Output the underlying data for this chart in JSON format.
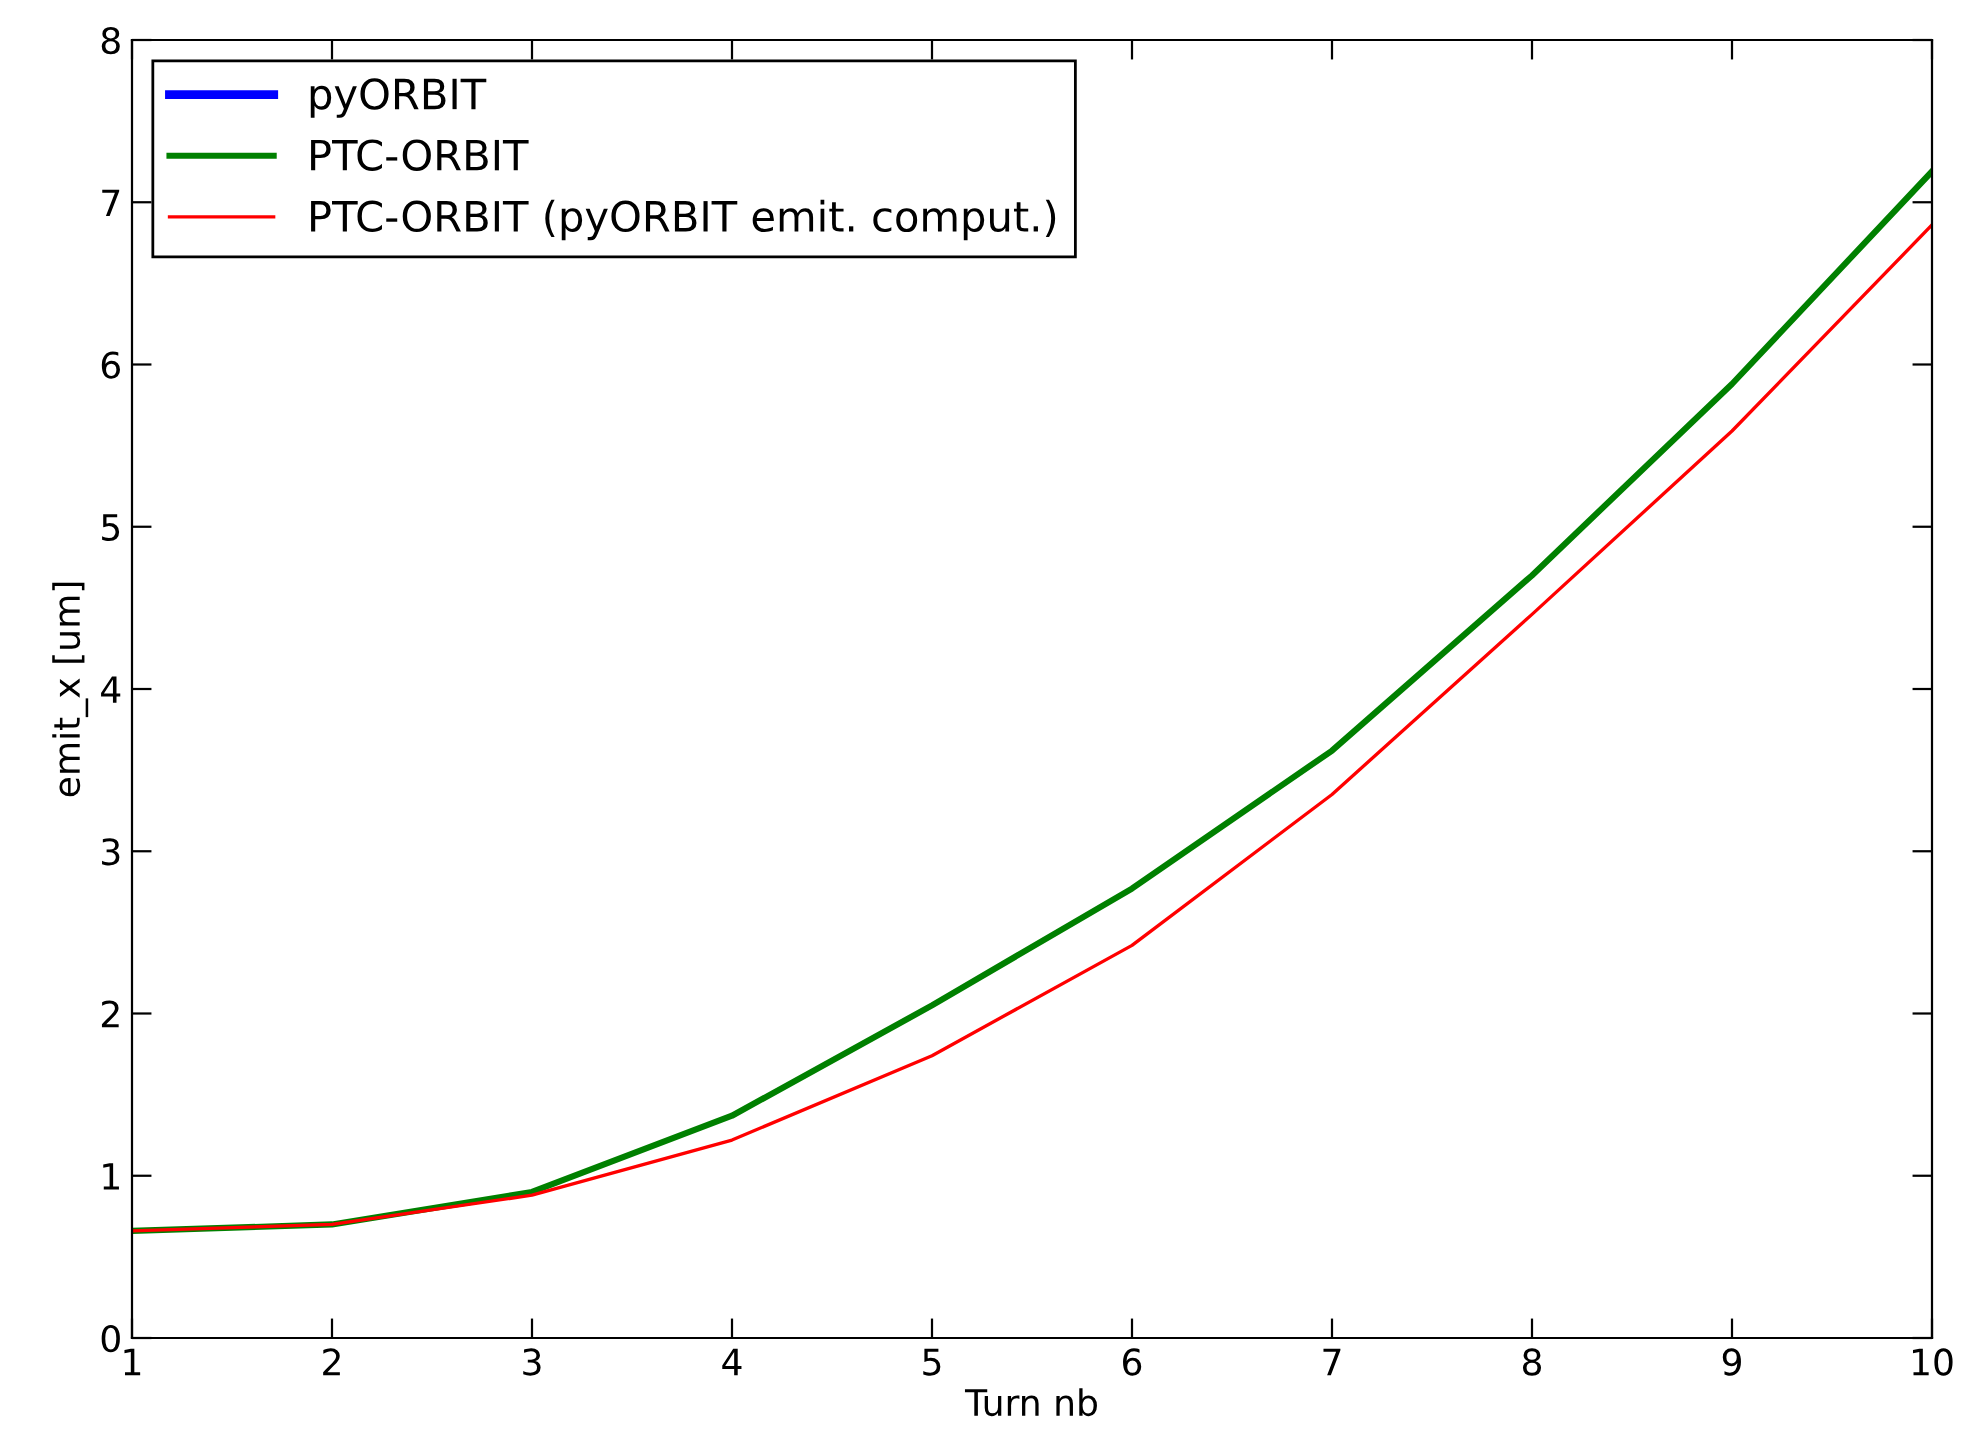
{
  "chart_data": {
    "type": "line",
    "xlabel": "Turn nb",
    "ylabel": "emit_x [um]",
    "x": [
      1,
      2,
      3,
      4,
      5,
      6,
      7,
      8,
      9,
      10
    ],
    "series": [
      {
        "name": "pyORBIT",
        "color": "#0000ff",
        "values": [
          null,
          null,
          null,
          null,
          null,
          null,
          null,
          null,
          null,
          null
        ]
      },
      {
        "name": "PTC-ORBIT",
        "color": "#008000",
        "values": [
          0.66,
          0.7,
          0.9,
          1.37,
          2.05,
          2.77,
          3.62,
          4.7,
          5.88,
          7.19
        ]
      },
      {
        "name": "PTC-ORBIT (pyORBIT emit. comput.)",
        "color": "#ff0000",
        "values": [
          0.66,
          0.7,
          0.88,
          1.22,
          1.74,
          2.42,
          3.35,
          4.46,
          5.59,
          6.86
        ]
      }
    ],
    "xlim": [
      1,
      10
    ],
    "xticks": [
      1,
      2,
      3,
      4,
      5,
      6,
      7,
      8,
      9,
      10
    ],
    "ylim": [
      0,
      8
    ],
    "yticks": [
      0,
      1,
      2,
      3,
      4,
      5,
      6,
      7,
      8
    ],
    "grid": false,
    "legend": "top left",
    "marker": "none",
    "line_style": "solid"
  }
}
